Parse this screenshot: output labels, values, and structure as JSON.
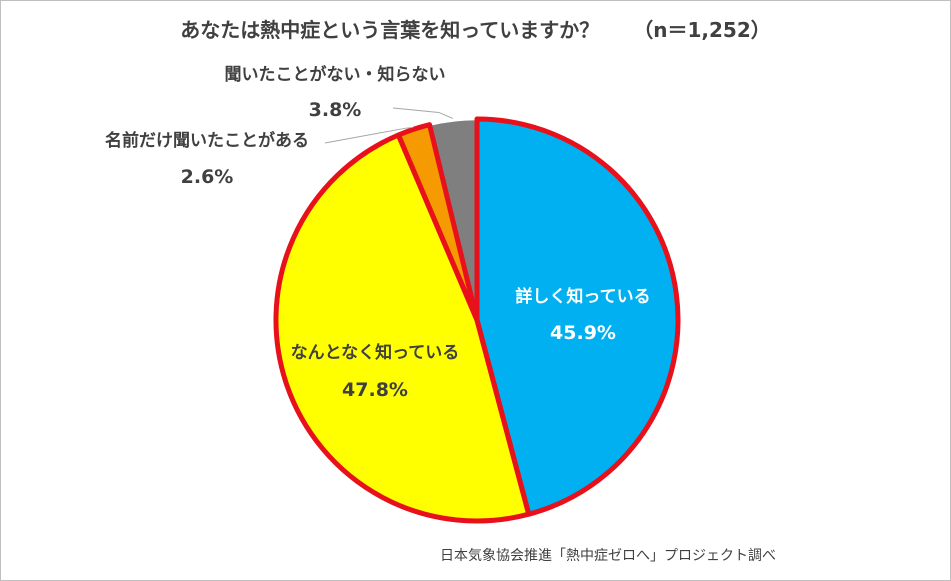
{
  "chart_data": {
    "type": "pie",
    "title": "あなたは熱中症という言葉を知っていますか？",
    "sample_size": "（n＝1,252）",
    "categories": [
      "詳しく知っている",
      "なんとなく知っている",
      "名前だけ聞いたことがある",
      "聞いたことがない・知らない"
    ],
    "values": [
      45.9,
      47.8,
      2.6,
      3.8
    ],
    "value_labels": [
      "45.9%",
      "47.8%",
      "2.6%",
      "3.8%"
    ],
    "colors": [
      "#00b0f0",
      "#ffff00",
      "#f59a00",
      "#7f7f7f"
    ],
    "highlight_outline_color": "#e8101a",
    "start_angle": "12 o'clock, clockwise",
    "source": "日本気象協会推進「熱中症ゼロへ」プロジェクト調べ"
  }
}
